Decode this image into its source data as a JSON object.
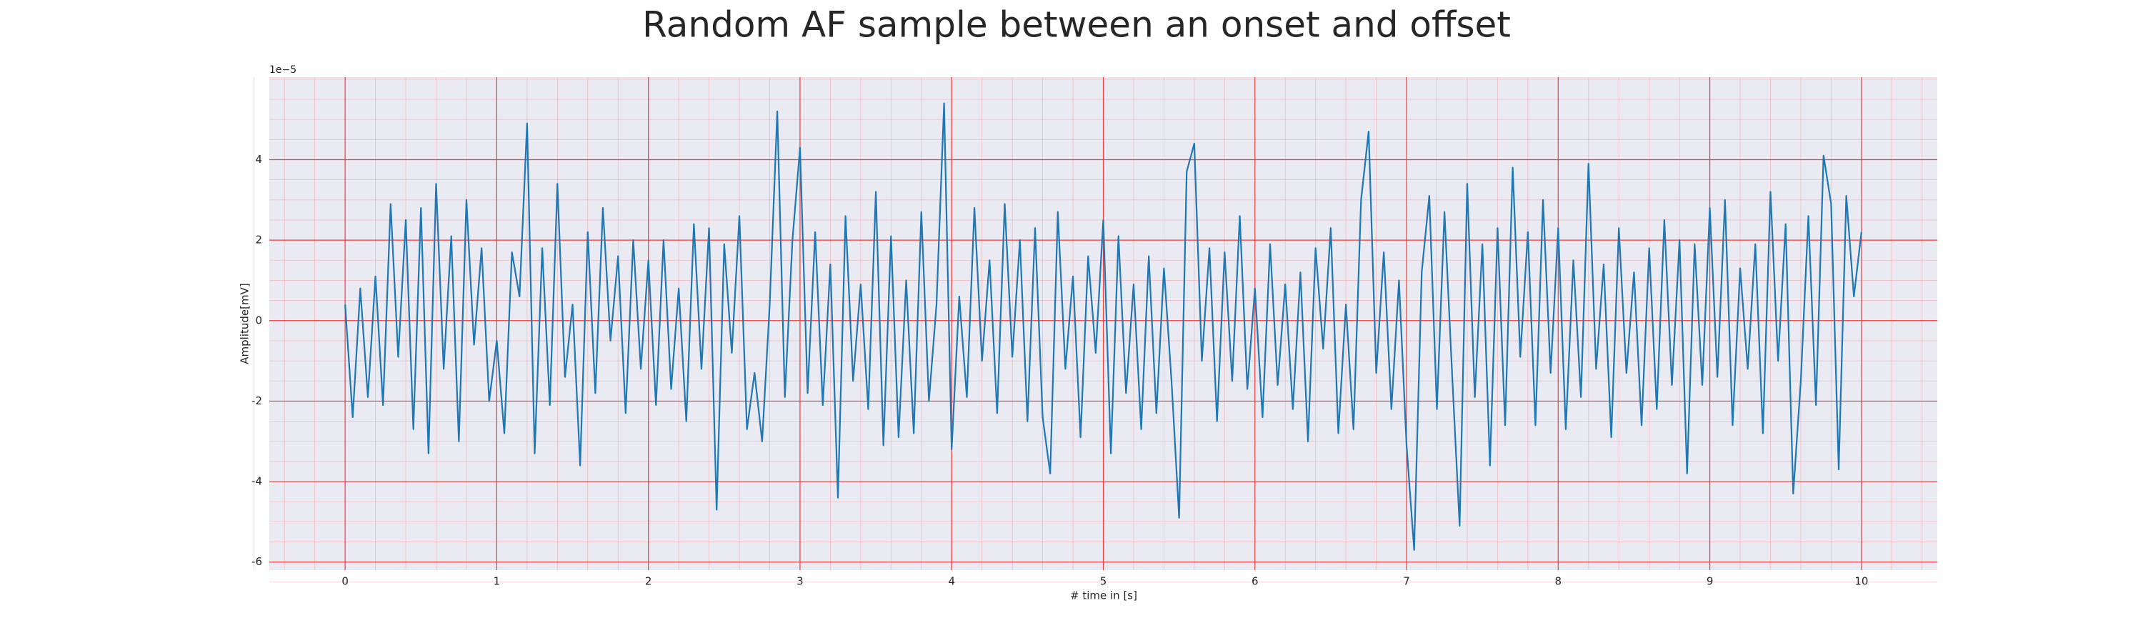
{
  "chart_data": {
    "type": "line",
    "title": "Random AF sample between an onset and offset",
    "x_label": "# time in [s]",
    "y_label": "Amplitude[mV]",
    "y_offset_label": "1e−5",
    "grid": true,
    "minor_grid": true,
    "xlim": [
      -0.5,
      10.5
    ],
    "ylim": [
      -6.2,
      6.05
    ],
    "xticks": [
      0,
      1,
      2,
      3,
      4,
      5,
      6,
      7,
      8,
      9,
      10
    ],
    "yticks": [
      -6,
      -4,
      -2,
      0,
      2,
      4
    ],
    "x": [
      0,
      0.05,
      0.1,
      0.15,
      0.2,
      0.25,
      0.3,
      0.35,
      0.4,
      0.45,
      0.5,
      0.55,
      0.6,
      0.65,
      0.7,
      0.75,
      0.8,
      0.85,
      0.9,
      0.95,
      1,
      1.05,
      1.1,
      1.15,
      1.2,
      1.25,
      1.3,
      1.35,
      1.4,
      1.45,
      1.5,
      1.55,
      1.6,
      1.65,
      1.7,
      1.75,
      1.8,
      1.85,
      1.9,
      1.95,
      2,
      2.05,
      2.1,
      2.15,
      2.2,
      2.25,
      2.3,
      2.35,
      2.4,
      2.45,
      2.5,
      2.55,
      2.6,
      2.65,
      2.7,
      2.75,
      2.8,
      2.85,
      2.9,
      2.95,
      3,
      3.05,
      3.1,
      3.15,
      3.2,
      3.25,
      3.3,
      3.35,
      3.4,
      3.45,
      3.5,
      3.55,
      3.6,
      3.65,
      3.7,
      3.75,
      3.8,
      3.85,
      3.9,
      3.95,
      4,
      4.05,
      4.1,
      4.15,
      4.2,
      4.25,
      4.3,
      4.35,
      4.4,
      4.45,
      4.5,
      4.55,
      4.6,
      4.65,
      4.7,
      4.75,
      4.8,
      4.85,
      4.9,
      4.95,
      5,
      5.05,
      5.1,
      5.15,
      5.2,
      5.25,
      5.3,
      5.35,
      5.4,
      5.45,
      5.5,
      5.55,
      5.6,
      5.65,
      5.7,
      5.75,
      5.8,
      5.85,
      5.9,
      5.95,
      6,
      6.05,
      6.1,
      6.15,
      6.2,
      6.25,
      6.3,
      6.35,
      6.4,
      6.45,
      6.5,
      6.55,
      6.6,
      6.65,
      6.7,
      6.75,
      6.8,
      6.85,
      6.9,
      6.95,
      7,
      7.05,
      7.1,
      7.15,
      7.2,
      7.25,
      7.3,
      7.35,
      7.4,
      7.45,
      7.5,
      7.55,
      7.6,
      7.65,
      7.7,
      7.75,
      7.8,
      7.85,
      7.9,
      7.95,
      8,
      8.05,
      8.1,
      8.15,
      8.2,
      8.25,
      8.3,
      8.35,
      8.4,
      8.45,
      8.5,
      8.55,
      8.6,
      8.65,
      8.7,
      8.75,
      8.8,
      8.85,
      8.9,
      8.95,
      9,
      9.05,
      9.1,
      9.15,
      9.2,
      9.25,
      9.3,
      9.35,
      9.4,
      9.45,
      9.5,
      9.55,
      9.6,
      9.65,
      9.7,
      9.75,
      9.8,
      9.85,
      9.9,
      9.95,
      10
    ],
    "series": [
      {
        "color": "#1f77b4",
        "values": [
          0.4,
          -2.4,
          0.8,
          -1.9,
          1.1,
          -2.1,
          2.9,
          -0.9,
          2.5,
          -2.7,
          2.8,
          -3.3,
          3.4,
          -1.2,
          2.1,
          -3.0,
          3.0,
          -0.6,
          1.8,
          -2.0,
          -0.5,
          -2.8,
          1.7,
          0.6,
          4.9,
          -3.3,
          1.8,
          -2.1,
          3.4,
          -1.4,
          0.4,
          -3.6,
          2.2,
          -1.8,
          2.8,
          -0.5,
          1.6,
          -2.3,
          2.0,
          -1.2,
          1.5,
          -2.1,
          2.0,
          -1.7,
          0.8,
          -2.5,
          2.4,
          -1.2,
          2.3,
          -4.7,
          1.9,
          -0.8,
          2.6,
          -2.7,
          -1.3,
          -3.0,
          0.4,
          5.2,
          -1.9,
          2.0,
          4.3,
          -1.8,
          2.2,
          -2.1,
          1.4,
          -4.4,
          2.6,
          -1.5,
          0.9,
          -2.2,
          3.2,
          -3.1,
          2.1,
          -2.9,
          1.0,
          -2.8,
          2.7,
          -2.0,
          0.4,
          5.4,
          -3.2,
          0.6,
          -1.9,
          2.8,
          -1.0,
          1.5,
          -2.3,
          2.9,
          -0.9,
          2.0,
          -2.5,
          2.3,
          -2.4,
          -3.8,
          2.7,
          -1.2,
          1.1,
          -2.9,
          1.6,
          -0.8,
          2.5,
          -3.3,
          2.1,
          -1.8,
          0.9,
          -2.7,
          1.6,
          -2.3,
          1.3,
          -1.5,
          -4.9,
          3.7,
          4.4,
          -1.0,
          1.8,
          -2.5,
          1.7,
          -1.5,
          2.6,
          -1.7,
          0.8,
          -2.4,
          1.9,
          -1.6,
          0.9,
          -2.2,
          1.2,
          -3.0,
          1.8,
          -0.7,
          2.3,
          -2.8,
          0.4,
          -2.7,
          3.0,
          4.7,
          -1.3,
          1.7,
          -2.2,
          1.0,
          -3.1,
          -5.7,
          1.2,
          3.1,
          -2.2,
          2.7,
          -1.3,
          -5.1,
          3.4,
          -1.9,
          1.9,
          -3.6,
          2.3,
          -2.6,
          3.8,
          -0.9,
          2.2,
          -2.6,
          3.0,
          -1.3,
          2.3,
          -2.7,
          1.5,
          -1.9,
          3.9,
          -1.2,
          1.4,
          -2.9,
          2.3,
          -1.3,
          1.2,
          -2.6,
          1.8,
          -2.2,
          2.5,
          -1.6,
          2.0,
          -3.8,
          1.9,
          -1.6,
          2.8,
          -1.4,
          3.0,
          -2.6,
          1.3,
          -1.2,
          1.9,
          -2.8,
          3.2,
          -1.0,
          2.4,
          -4.3,
          -1.5,
          2.6,
          -2.1,
          4.1,
          2.9,
          -3.7,
          3.1,
          0.6,
          2.2
        ]
      }
    ]
  }
}
